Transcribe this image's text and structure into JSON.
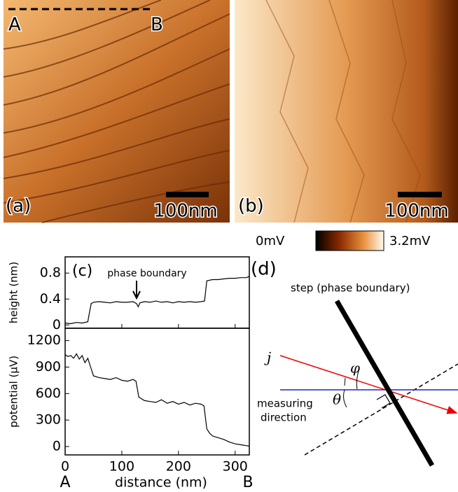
{
  "panels": {
    "a": {
      "label": "(a)",
      "scale_bar": "100nm",
      "point_a": "A",
      "point_b": "B"
    },
    "b": {
      "label": "(b)",
      "scale_bar": "100nm"
    },
    "colorbar": {
      "min_label": "0mV",
      "max_label": "3.2mV"
    },
    "d": {
      "label": "(d)",
      "step_label": "step (phase boundary)",
      "current_label": "j",
      "phi_label": "φ",
      "theta_label": "θ",
      "direction_line1": "measuring",
      "direction_line2": "direction"
    }
  },
  "chart_data": [
    {
      "type": "line",
      "panel_label": "(c)",
      "annotation": "phase boundary",
      "ylabel": "height (nm)",
      "color": "#000000",
      "x": [
        0,
        10,
        20,
        30,
        40,
        42,
        46,
        50,
        60,
        70,
        80,
        90,
        100,
        110,
        120,
        126,
        129,
        132,
        140,
        150,
        160,
        170,
        180,
        190,
        200,
        210,
        220,
        230,
        240,
        246,
        250,
        260,
        270,
        280,
        290,
        300,
        310,
        320,
        325
      ],
      "values": [
        0.03,
        0.02,
        0.04,
        0.03,
        0.05,
        0.15,
        0.33,
        0.35,
        0.36,
        0.35,
        0.34,
        0.36,
        0.35,
        0.35,
        0.36,
        0.33,
        0.28,
        0.34,
        0.36,
        0.35,
        0.37,
        0.35,
        0.36,
        0.34,
        0.36,
        0.35,
        0.36,
        0.35,
        0.36,
        0.37,
        0.68,
        0.7,
        0.7,
        0.71,
        0.72,
        0.72,
        0.73,
        0.73,
        0.75
      ],
      "xlim": [
        0,
        325
      ],
      "xticks": [
        0,
        100,
        200,
        300
      ],
      "ylim": [
        -0.05,
        1.05
      ],
      "yticks": [
        0,
        0.4,
        0.8
      ]
    },
    {
      "type": "line",
      "ylabel": "potential (μV)",
      "xlabel": "distance (nm)",
      "x_start_label": "A",
      "x_end_label": "B",
      "color": "#000000",
      "x": [
        0,
        5,
        10,
        15,
        20,
        25,
        30,
        35,
        40,
        45,
        50,
        60,
        70,
        80,
        90,
        100,
        110,
        120,
        125,
        130,
        140,
        150,
        160,
        170,
        180,
        190,
        200,
        210,
        220,
        230,
        240,
        245,
        250,
        255,
        260,
        270,
        280,
        290,
        300,
        310,
        320,
        325
      ],
      "values": [
        1040,
        1020,
        1030,
        1000,
        1050,
        990,
        1030,
        950,
        1000,
        900,
        800,
        780,
        770,
        760,
        780,
        750,
        740,
        760,
        740,
        560,
        520,
        510,
        500,
        530,
        490,
        510,
        480,
        500,
        470,
        490,
        480,
        460,
        200,
        150,
        120,
        100,
        80,
        50,
        30,
        20,
        10,
        5
      ],
      "xlim": [
        0,
        325
      ],
      "xticks": [
        0,
        100,
        200,
        300
      ],
      "ylim": [
        -95,
        1340
      ],
      "yticks": [
        0,
        300,
        600,
        900,
        1200
      ]
    }
  ]
}
